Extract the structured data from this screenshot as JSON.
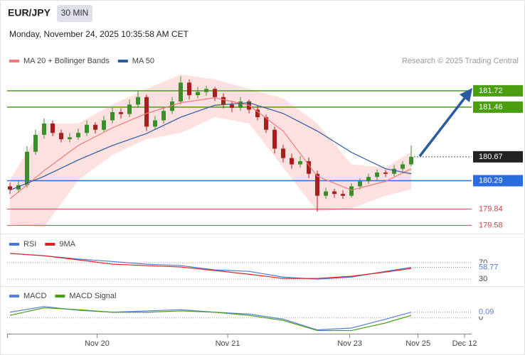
{
  "header": {
    "title": "EUR/JPY",
    "timeframe": "30 MIN",
    "datetime": "Monday, November 24, 2025 10:35:58 AM CET",
    "credit": "Research © 2025 Trading Central"
  },
  "chart_data": [
    {
      "type": "candlestick",
      "up_color": "#3a8f2a",
      "down_color": "#a81e1e",
      "open": [
        180.2,
        180.15,
        180.22,
        180.75,
        181.02,
        181.2,
        181.05,
        180.95,
        180.98,
        181.05,
        181.18,
        181.1,
        181.25,
        181.38,
        181.35,
        181.5,
        181.62,
        181.15,
        181.25,
        181.4,
        181.55,
        181.85,
        181.65,
        181.7,
        181.75,
        181.62,
        181.5,
        181.45,
        181.55,
        181.42,
        181.3,
        181.1,
        180.8,
        180.65,
        180.55,
        180.6,
        180.4,
        180.05,
        180.12,
        180.08,
        180.05,
        180.2,
        180.28,
        180.35,
        180.42,
        180.4,
        180.48,
        180.55
      ],
      "high": [
        180.26,
        180.28,
        180.84,
        181.1,
        181.28,
        181.25,
        181.1,
        181.05,
        181.12,
        181.25,
        181.22,
        181.32,
        181.45,
        181.44,
        181.58,
        181.72,
        181.66,
        181.32,
        181.46,
        181.62,
        181.95,
        181.9,
        181.78,
        181.8,
        181.78,
        181.68,
        181.56,
        181.62,
        181.58,
        181.48,
        181.34,
        181.15,
        180.86,
        180.72,
        180.68,
        180.66,
        180.45,
        180.18,
        180.16,
        180.14,
        180.25,
        180.33,
        180.4,
        180.47,
        180.46,
        180.54,
        180.6,
        180.85
      ],
      "low": [
        180.08,
        180.1,
        180.18,
        180.7,
        180.96,
        181.0,
        180.9,
        180.9,
        180.94,
        181.0,
        181.04,
        181.06,
        181.2,
        181.28,
        181.3,
        181.45,
        181.08,
        181.1,
        181.2,
        181.35,
        181.5,
        181.58,
        181.6,
        181.64,
        181.56,
        181.44,
        181.38,
        181.4,
        181.36,
        181.25,
        181.05,
        180.72,
        180.58,
        180.48,
        180.5,
        180.33,
        179.8,
        180.0,
        180.02,
        180.0,
        180.02,
        180.15,
        180.24,
        180.3,
        180.35,
        180.36,
        180.44,
        180.52
      ],
      "close": [
        180.15,
        180.22,
        180.75,
        181.02,
        181.2,
        181.05,
        180.95,
        180.98,
        181.05,
        181.18,
        181.1,
        181.25,
        181.38,
        181.35,
        181.5,
        181.62,
        181.15,
        181.25,
        181.4,
        181.55,
        181.85,
        181.65,
        181.7,
        181.75,
        181.62,
        181.5,
        181.45,
        181.55,
        181.42,
        181.3,
        181.1,
        180.8,
        180.65,
        180.55,
        180.6,
        180.4,
        180.05,
        180.12,
        180.08,
        180.05,
        180.2,
        180.28,
        180.35,
        180.42,
        180.4,
        180.48,
        180.55,
        180.67
      ],
      "series": [
        {
          "name": "MA 20 + Bollinger Bands",
          "color": "#f07a7a",
          "band_color": "#fde0e0",
          "x": [
            0,
            4,
            8,
            12,
            16,
            20,
            24,
            28,
            32,
            36,
            40,
            44,
            47
          ],
          "values": [
            180.0,
            180.45,
            180.85,
            181.13,
            181.36,
            181.53,
            181.61,
            181.49,
            181.08,
            180.36,
            180.14,
            180.28,
            180.48
          ],
          "upper": [
            180.3,
            181.2,
            181.2,
            181.5,
            181.75,
            181.98,
            181.9,
            181.75,
            181.6,
            181.2,
            180.55,
            180.5,
            180.75
          ],
          "lower": [
            179.6,
            179.55,
            180.3,
            180.7,
            180.95,
            181.05,
            181.3,
            181.2,
            180.5,
            179.8,
            179.85,
            180.05,
            180.15
          ]
        },
        {
          "name": "MA 50",
          "color": "#2c5aa0",
          "x": [
            0,
            4,
            8,
            12,
            16,
            20,
            24,
            28,
            32,
            36,
            40,
            44,
            47
          ],
          "values": [
            180.14,
            180.36,
            180.62,
            180.85,
            181.04,
            181.3,
            181.49,
            181.53,
            181.36,
            181.08,
            180.74,
            180.48,
            180.4
          ]
        }
      ],
      "levels": [
        {
          "value": 181.72,
          "color": "#4a9e10",
          "style": "box"
        },
        {
          "value": 181.46,
          "color": "#4a9e10",
          "style": "box"
        },
        {
          "value": 180.29,
          "color": "#2b6de0",
          "style": "box"
        },
        {
          "value": 179.84,
          "color": "#d04545",
          "style": "text"
        },
        {
          "value": 179.58,
          "color": "#d04545",
          "style": "text"
        }
      ],
      "current_color": "#222222",
      "ylim": [
        179.46,
        182.43
      ],
      "xlim": [
        0,
        54.08
      ],
      "xticks": [
        {
          "value": 10.2,
          "label": "Nov 20"
        },
        {
          "value": 25.5,
          "label": "Nov 21"
        },
        {
          "value": 39.8,
          "label": "Nov 23"
        },
        {
          "value": 47.8,
          "label": "Nov 25"
        },
        {
          "value": 53.25,
          "label": "Dec 12"
        }
      ]
    },
    {
      "type": "line",
      "series": [
        {
          "name": "RSI",
          "color": "#4a78d8",
          "x": [
            0,
            4,
            8,
            12,
            16,
            20,
            24,
            28,
            32,
            36,
            40,
            44,
            47
          ],
          "values": [
            92.6,
            87,
            79,
            73,
            66.5,
            63,
            52.6,
            49,
            35,
            30,
            35,
            49,
            58.77
          ]
        },
        {
          "name": "9MA",
          "color": "#e02020",
          "x": [
            0,
            4,
            8,
            12,
            16,
            20,
            24,
            28,
            32,
            36,
            40,
            44,
            47
          ],
          "values": [
            92.6,
            87,
            77,
            66.5,
            63,
            59.6,
            51,
            42,
            31.7,
            31.7,
            37,
            47.4,
            56
          ]
        }
      ],
      "ylim": [
        13,
        134
      ],
      "yticks": [
        30,
        70
      ]
    },
    {
      "type": "line",
      "series": [
        {
          "name": "MACD",
          "color": "#5a7fd8",
          "x": [
            0,
            4,
            8,
            12,
            16,
            20,
            24,
            28,
            32,
            36,
            40,
            44,
            47
          ],
          "values": [
            0.09,
            0.18,
            0.12,
            0.09,
            0.11,
            0.13,
            0.09,
            0.06,
            -0.02,
            -0.19,
            -0.16,
            -0.02,
            0.09
          ]
        },
        {
          "name": "MACD Signal",
          "color": "#4a9e10",
          "x": [
            0,
            4,
            8,
            12,
            16,
            20,
            24,
            28,
            32,
            36,
            40,
            44,
            47
          ],
          "values": [
            0.04,
            0.16,
            0.13,
            0.09,
            0.09,
            0.11,
            0.09,
            0.04,
            -0.04,
            -0.2,
            -0.2,
            -0.08,
            0.04
          ]
        }
      ],
      "ylim": [
        -0.25,
        0.48
      ],
      "yticks": [
        0
      ]
    }
  ]
}
